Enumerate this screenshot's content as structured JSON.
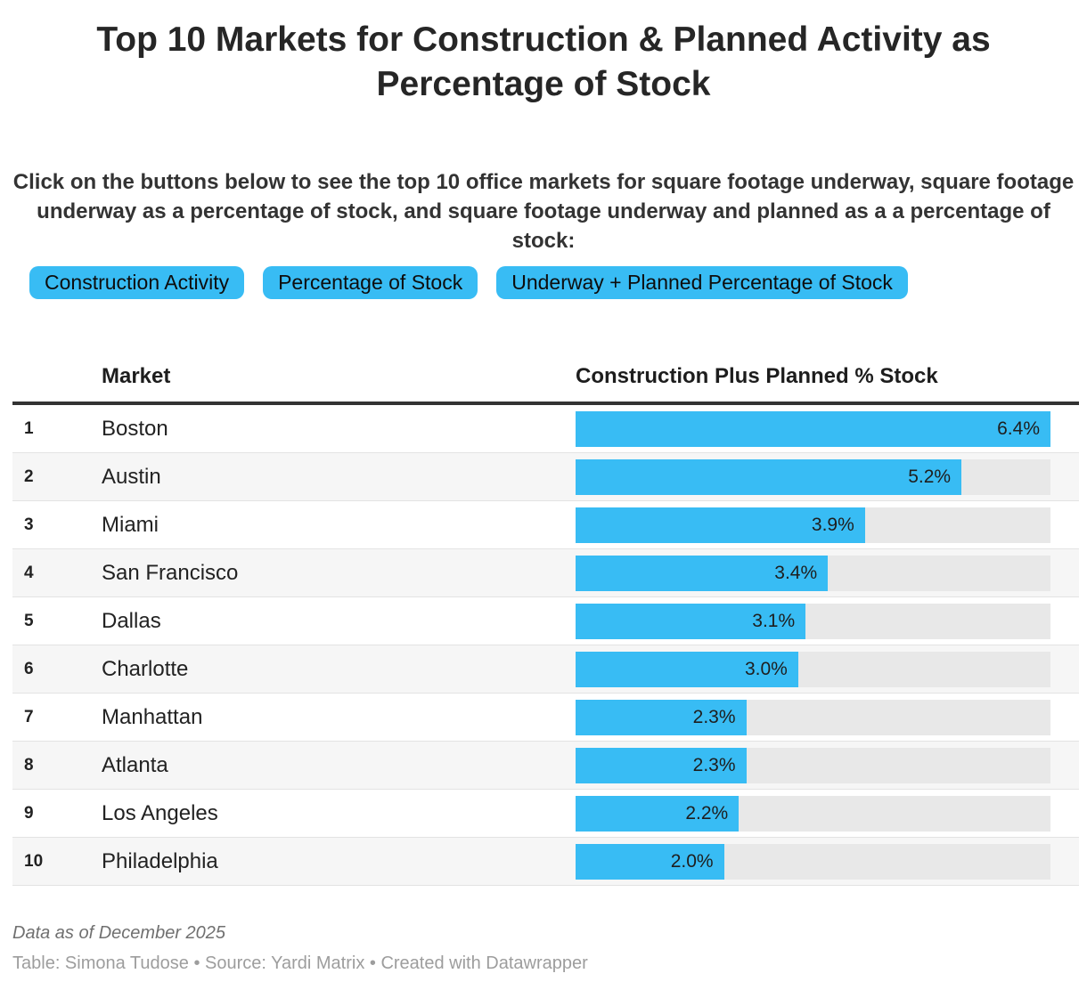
{
  "page": {
    "title": "Top 10 Markets for Construction & Planned Activity as Percentage of Stock",
    "intro": "Click on the buttons below to see the top 10 office markets for square footage underway, square footage underway as a percentage of stock, and square footage underway and planned as a a percentage of stock:"
  },
  "buttons": [
    {
      "label": "Construction Activity"
    },
    {
      "label": "Percentage of Stock"
    },
    {
      "label": "Underway + Planned Percentage of Stock"
    }
  ],
  "colors": {
    "accent": "#38bcf4",
    "bar_track": "#e8e8e8",
    "alt_row": "#f6f6f6",
    "header_rule": "#333333"
  },
  "table": {
    "columns": {
      "market": "Market",
      "value": "Construction Plus Planned % Stock"
    }
  },
  "chart_data": {
    "type": "bar",
    "title": "Top 10 Markets for Construction & Planned Activity as Percentage of Stock",
    "xlabel": "Construction Plus Planned % Stock",
    "ylabel": "Market",
    "xlim": [
      0,
      6.4
    ],
    "grid": false,
    "ranks": [
      1,
      2,
      3,
      4,
      5,
      6,
      7,
      8,
      9,
      10
    ],
    "categories": [
      "Boston",
      "Austin",
      "Miami",
      "San Francisco",
      "Dallas",
      "Charlotte",
      "Manhattan",
      "Atlanta",
      "Los Angeles",
      "Philadelphia"
    ],
    "values": [
      6.4,
      5.2,
      3.9,
      3.4,
      3.1,
      3.0,
      2.3,
      2.3,
      2.2,
      2.0
    ],
    "labels": [
      "6.4%",
      "5.2%",
      "3.9%",
      "3.4%",
      "3.1%",
      "3.0%",
      "2.3%",
      "2.3%",
      "2.2%",
      "2.0%"
    ]
  },
  "footer": {
    "note": "Data as of December 2025",
    "byline": "Table: Simona Tudose • Source: Yardi Matrix • Created with Datawrapper"
  }
}
